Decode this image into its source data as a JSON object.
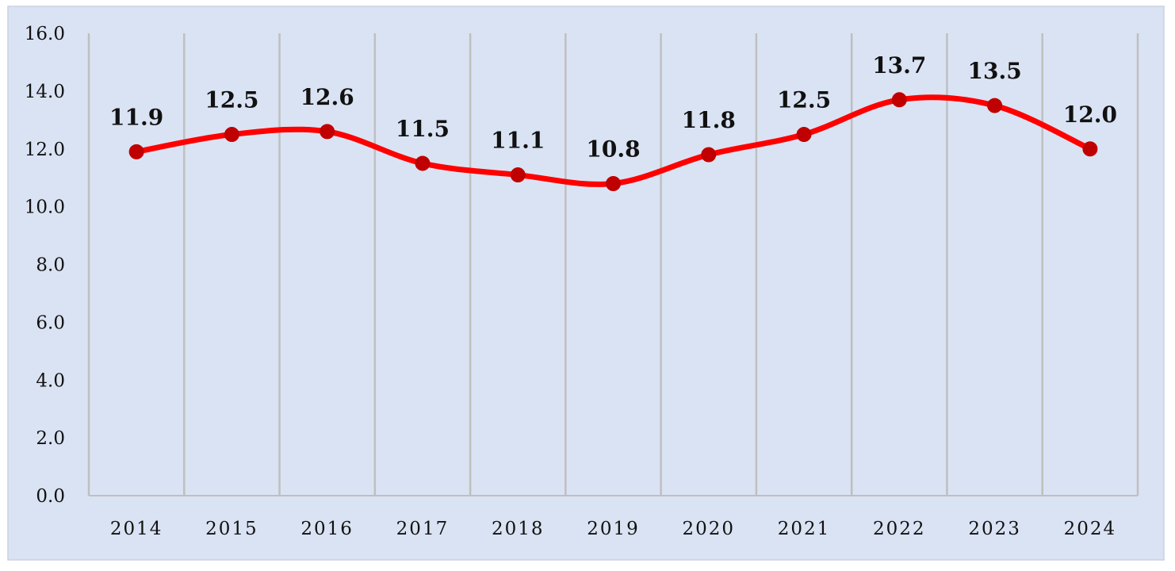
{
  "chart_data": {
    "type": "line",
    "title": "",
    "xlabel": "",
    "ylabel": "",
    "categories": [
      "2014",
      "2015",
      "2016",
      "2017",
      "2018",
      "2019",
      "2020",
      "2021",
      "2022",
      "2023",
      "2024"
    ],
    "series": [
      {
        "values": [
          11.9,
          12.5,
          12.6,
          11.5,
          11.1,
          10.8,
          11.8,
          12.5,
          13.7,
          13.5,
          12.0
        ],
        "color": "#ff0000",
        "marker_color": "#c00000",
        "smooth": true
      }
    ],
    "data_labels": [
      "11.9",
      "12.5",
      "12.6",
      "11.5",
      "11.1",
      "10.8",
      "11.8",
      "12.5",
      "13.7",
      "13.5",
      "12.0"
    ],
    "ylim": [
      0,
      16
    ],
    "y_ticks": [
      "0.0",
      "2.0",
      "4.0",
      "6.0",
      "8.0",
      "10.0",
      "12.0",
      "14.0",
      "16.0"
    ],
    "grid": "vertical",
    "legend": "none",
    "colors": {
      "background": "#dae3f3",
      "border": "#c9d1e0",
      "gridline": "#bfbfbf"
    }
  }
}
